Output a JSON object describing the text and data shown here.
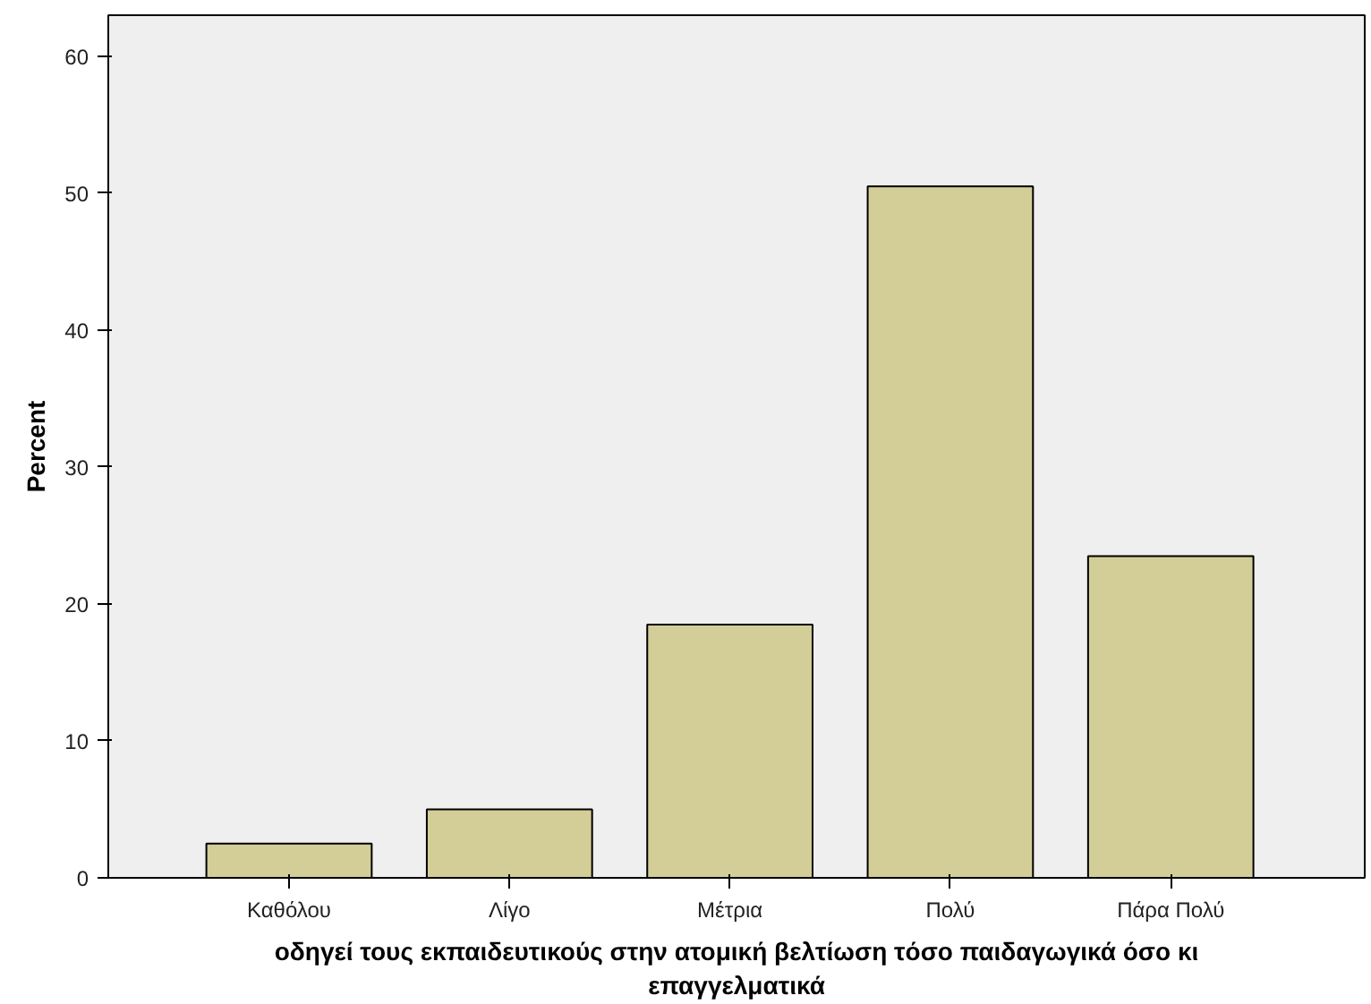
{
  "chart_data": {
    "type": "bar",
    "categories": [
      "Καθόλου",
      "Λίγο",
      "Μέτρια",
      "Πολύ",
      "Πάρα Πολύ"
    ],
    "values": [
      2.5,
      5.0,
      18.5,
      50.5,
      23.5
    ],
    "color": "#d3ce97",
    "xlabel": "οδηγεί τους εκπαιδευτικούς στην ατομική βελτίωση τόσο παιδαγωγικά όσο κι\nεπαγγελματικά",
    "ylabel": "Percent",
    "ylim": [
      0,
      63
    ],
    "yticks": [
      0,
      10,
      20,
      30,
      40,
      50,
      60
    ],
    "grid": false
  }
}
